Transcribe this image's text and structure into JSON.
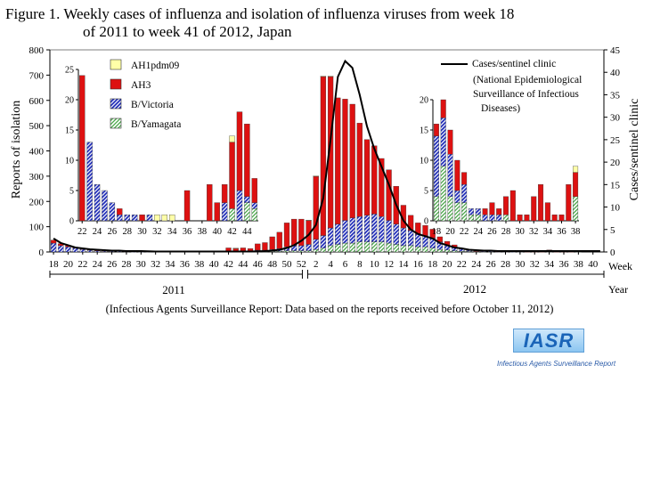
{
  "title_line1": "Figure 1. Weekly cases of influenza and isolation of influenza viruses from week 18",
  "title_line2": "of 2011 to week 41 of 2012, Japan",
  "footer": "(Infectious Agents Surveillance Report: Data based on the reports received before October 11, 2012)",
  "logo_text": "IASR",
  "logo_subtitle": "Infectious Agents Surveillance Report",
  "colors": {
    "AH1pdm09": "#ffffa8",
    "AH3": "#dd1111",
    "B/Victoria": "#1f2cb8",
    "B/Yamagata": "#3ca03c",
    "line": "#000000"
  },
  "chart_data": {
    "type": "bar",
    "ylabel": "Reports of isolation",
    "y2label": "Cases/sentinel clinic",
    "xlabel": "Week",
    "year_axis_label": "Year",
    "ylim": [
      0,
      800
    ],
    "yticks": [
      0,
      100,
      200,
      300,
      400,
      500,
      600,
      700,
      800
    ],
    "y2lim": [
      0,
      45
    ],
    "y2ticks": [
      0,
      5,
      10,
      15,
      20,
      25,
      30,
      35,
      40,
      45
    ],
    "year_labels": [
      "2011",
      "2012"
    ],
    "xtick_labels": [
      "18",
      "20",
      "22",
      "24",
      "26",
      "28",
      "30",
      "32",
      "34",
      "36",
      "38",
      "40",
      "42",
      "44",
      "46",
      "48",
      "50",
      "52",
      "2",
      "4",
      "6",
      "8",
      "10",
      "12",
      "14",
      "16",
      "18",
      "20",
      "22",
      "24",
      "26",
      "28",
      "30",
      "32",
      "34",
      "36",
      "38",
      "40"
    ],
    "legend": {
      "line_entry": "Cases/sentinel clinic",
      "line_note": "(National Epidemiological Surveillance of Infectious Diseases)",
      "bar_entries": [
        "AH1pdm09",
        "AH3",
        "B/Victoria",
        "B/Yamagata"
      ]
    },
    "weeks": [
      "2011-18",
      "2011-19",
      "2011-20",
      "2011-21",
      "2011-22",
      "2011-23",
      "2011-24",
      "2011-25",
      "2011-26",
      "2011-27",
      "2011-28",
      "2011-29",
      "2011-30",
      "2011-31",
      "2011-32",
      "2011-33",
      "2011-34",
      "2011-35",
      "2011-36",
      "2011-37",
      "2011-38",
      "2011-39",
      "2011-40",
      "2011-41",
      "2011-42",
      "2011-43",
      "2011-44",
      "2011-45",
      "2011-46",
      "2011-47",
      "2011-48",
      "2011-49",
      "2011-50",
      "2011-51",
      "2011-52",
      "2012-1",
      "2012-2",
      "2012-3",
      "2012-4",
      "2012-5",
      "2012-6",
      "2012-7",
      "2012-8",
      "2012-9",
      "2012-10",
      "2012-11",
      "2012-12",
      "2012-13",
      "2012-14",
      "2012-15",
      "2012-16",
      "2012-17",
      "2012-18",
      "2012-19",
      "2012-20",
      "2012-21",
      "2012-22",
      "2012-23",
      "2012-24",
      "2012-25",
      "2012-26",
      "2012-27",
      "2012-28",
      "2012-29",
      "2012-30",
      "2012-31",
      "2012-32",
      "2012-33",
      "2012-34",
      "2012-35",
      "2012-36",
      "2012-37",
      "2012-38",
      "2012-39",
      "2012-40",
      "2012-41"
    ],
    "series": [
      {
        "name": "AH1pdm09",
        "values": [
          0,
          0,
          0,
          0,
          0,
          0,
          0,
          0,
          0,
          0,
          0,
          0,
          0,
          0,
          0,
          0,
          0,
          0,
          0,
          0,
          0,
          0,
          0,
          0,
          0,
          1,
          0,
          0,
          0,
          0,
          0,
          0,
          0,
          0,
          0,
          1,
          1,
          1,
          1,
          0,
          0,
          0,
          0,
          0,
          0,
          0,
          0,
          0,
          0,
          0,
          0,
          0,
          0,
          0,
          0,
          0,
          0,
          0,
          0,
          0,
          0,
          0,
          0,
          0,
          0,
          0,
          0,
          0,
          0,
          0,
          0,
          0,
          0,
          0,
          0,
          0
        ]
      },
      {
        "name": "AH3",
        "values": [
          12,
          8,
          6,
          4,
          2,
          2,
          1,
          1,
          1,
          0,
          1,
          0,
          0,
          0,
          0,
          0,
          0,
          0,
          3,
          0,
          1,
          2,
          2,
          2,
          14,
          12,
          12,
          8,
          25,
          30,
          50,
          65,
          95,
          105,
          105,
          95,
          250,
          630,
          600,
          500,
          480,
          450,
          370,
          300,
          270,
          230,
          200,
          150,
          90,
          60,
          45,
          40,
          35,
          20,
          14,
          8,
          3,
          2,
          1,
          2,
          3,
          1,
          1,
          2,
          5,
          1,
          1,
          1,
          6,
          1,
          1,
          1,
          2,
          0,
          0,
          0
        ]
      },
      {
        "name": "B/Victoria",
        "values": [
          35,
          25,
          20,
          15,
          10,
          7,
          5,
          4,
          3,
          2,
          2,
          1,
          1,
          1,
          1,
          1,
          0,
          0,
          0,
          0,
          0,
          2,
          2,
          2,
          2,
          2,
          2,
          3,
          5,
          5,
          8,
          10,
          15,
          20,
          20,
          25,
          40,
          50,
          70,
          80,
          90,
          100,
          100,
          105,
          110,
          100,
          90,
          80,
          70,
          60,
          50,
          45,
          40,
          30,
          20,
          15,
          8,
          4,
          2,
          1,
          1,
          1,
          1,
          1,
          1,
          0,
          0,
          0,
          1,
          0,
          0,
          0,
          1,
          0,
          0,
          0
        ]
      },
      {
        "name": "B/Yamagata",
        "values": [
          0,
          0,
          0,
          0,
          0,
          0,
          0,
          0,
          0,
          0,
          0,
          0,
          0,
          0,
          0,
          0,
          0,
          0,
          0,
          0,
          0,
          0,
          0,
          0,
          0,
          0,
          2,
          2,
          2,
          2,
          2,
          3,
          5,
          5,
          5,
          5,
          10,
          15,
          25,
          30,
          35,
          35,
          40,
          40,
          40,
          40,
          35,
          30,
          25,
          25,
          20,
          20,
          15,
          10,
          8,
          5,
          3,
          2,
          1,
          1,
          1,
          0,
          0,
          0,
          0,
          0,
          0,
          0,
          1,
          0,
          0,
          0,
          1,
          0,
          0,
          0
        ]
      },
      {
        "name": "Cases/sentinel clinic",
        "axis": "right",
        "values": [
          3,
          2,
          1.5,
          1,
          0.8,
          0.6,
          0.5,
          0.4,
          0.3,
          0.3,
          0.2,
          0.2,
          0.2,
          0.15,
          0.1,
          0.1,
          0.1,
          0.1,
          0.1,
          0.1,
          0.1,
          0.1,
          0.1,
          0.1,
          0.1,
          0.1,
          0.1,
          0.1,
          0.15,
          0.2,
          0.3,
          0.5,
          0.9,
          1.5,
          2.5,
          3.8,
          6,
          12,
          25,
          39,
          42.5,
          41,
          35,
          28,
          23,
          19,
          15,
          10.5,
          7,
          5,
          4,
          3.5,
          3,
          2,
          1.5,
          1,
          0.8,
          0.5,
          0.4,
          0.3,
          0.3,
          0.2,
          0.2,
          0.2,
          0.2,
          0.2,
          0.2,
          0.2,
          0.2,
          0.2,
          0.2,
          0.2,
          0.2,
          0.2,
          0.2,
          0.2
        ]
      }
    ],
    "insets": [
      {
        "ylim": [
          0,
          25
        ],
        "yticks": [
          0,
          5,
          10,
          15,
          20,
          25
        ],
        "xtick_labels": [
          "22",
          "24",
          "26",
          "28",
          "30",
          "32",
          "34",
          "36",
          "38",
          "40",
          "42",
          "44"
        ],
        "weeks": [
          "22",
          "23",
          "24",
          "25",
          "26",
          "27",
          "28",
          "29",
          "30",
          "31",
          "32",
          "33",
          "34",
          "35",
          "36",
          "37",
          "38",
          "39",
          "40",
          "41",
          "42",
          "43",
          "44",
          "45"
        ],
        "series": [
          {
            "name": "AH1pdm09",
            "values": [
              0,
              0,
              0,
              0,
              0,
              0,
              0,
              0,
              0,
              0,
              1,
              1,
              1,
              0,
              0,
              0,
              0,
              0,
              0,
              0,
              1,
              0,
              0,
              0
            ]
          },
          {
            "name": "AH3",
            "values": [
              24,
              0,
              0,
              0,
              0,
              1,
              0,
              0,
              1,
              0,
              0,
              0,
              0,
              0,
              5,
              0,
              0,
              6,
              3,
              3,
              11,
              13,
              12,
              4
            ]
          },
          {
            "name": "B/Victoria",
            "values": [
              0,
              13,
              6,
              5,
              3,
              1,
              1,
              1,
              0,
              1,
              0,
              0,
              0,
              0,
              0,
              0,
              0,
              0,
              0,
              3,
              0,
              5,
              1,
              1
            ]
          },
          {
            "name": "B/Yamagata",
            "values": [
              0,
              0,
              0,
              0,
              0,
              0,
              0,
              0,
              0,
              0,
              0,
              0,
              0,
              0,
              0,
              0,
              0,
              0,
              0,
              0,
              2,
              0,
              3,
              2
            ]
          }
        ]
      },
      {
        "ylim": [
          0,
          20
        ],
        "yticks": [
          0,
          5,
          10,
          15,
          20
        ],
        "xtick_labels": [
          "18",
          "20",
          "22",
          "24",
          "26",
          "28",
          "30",
          "32",
          "34",
          "36",
          "38"
        ],
        "weeks": [
          "18",
          "19",
          "20",
          "21",
          "22",
          "23",
          "24",
          "25",
          "26",
          "27",
          "28",
          "29",
          "30",
          "31",
          "32",
          "33",
          "34",
          "35",
          "36",
          "37",
          "38"
        ],
        "series": [
          {
            "name": "AH1pdm09",
            "values": [
              0,
              0,
              0,
              0,
              0,
              0,
              0,
              0,
              0,
              0,
              0,
              0,
              0,
              0,
              0,
              0,
              0,
              0,
              0,
              0,
              1
            ]
          },
          {
            "name": "AH3",
            "values": [
              2,
              3,
              4,
              5,
              2,
              0,
              0,
              1,
              2,
              1,
              3,
              5,
              1,
              1,
              4,
              6,
              3,
              1,
              1,
              6,
              4
            ]
          },
          {
            "name": "B/Victoria",
            "values": [
              10,
              8,
              7,
              2,
              3,
              1,
              1,
              1,
              1,
              1,
              0,
              0,
              0,
              0,
              0,
              0,
              0,
              0,
              0,
              0,
              0
            ]
          },
          {
            "name": "B/Yamagata",
            "values": [
              4,
              9,
              4,
              3,
              3,
              1,
              1,
              0,
              0,
              0,
              1,
              0,
              0,
              0,
              0,
              0,
              0,
              0,
              0,
              0,
              4
            ]
          }
        ]
      }
    ]
  }
}
